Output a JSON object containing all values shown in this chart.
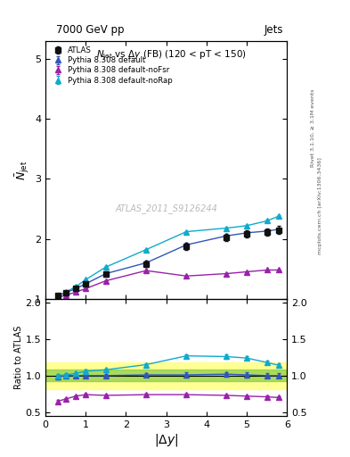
{
  "title_top": "7000 GeV pp",
  "title_right": "Jets",
  "watermark": "ATLAS_2011_S9126244",
  "x": [
    0.3,
    0.5,
    0.75,
    1.0,
    1.5,
    2.5,
    3.5,
    4.5,
    5.0,
    5.5,
    5.8
  ],
  "atlas_y": [
    1.05,
    1.1,
    1.17,
    1.25,
    1.42,
    1.58,
    1.88,
    2.02,
    2.08,
    2.12,
    2.15
  ],
  "atlas_yerr": [
    0.02,
    0.02,
    0.02,
    0.03,
    0.04,
    0.05,
    0.06,
    0.06,
    0.06,
    0.06,
    0.06
  ],
  "default_y": [
    1.05,
    1.1,
    1.17,
    1.25,
    1.42,
    1.6,
    1.9,
    2.05,
    2.1,
    2.13,
    2.16
  ],
  "default_yerr": [
    0.005,
    0.005,
    0.005,
    0.005,
    0.007,
    0.008,
    0.01,
    0.01,
    0.01,
    0.01,
    0.01
  ],
  "noFsr_y": [
    1.02,
    1.06,
    1.11,
    1.17,
    1.3,
    1.47,
    1.38,
    1.42,
    1.45,
    1.48,
    1.48
  ],
  "noFsr_yerr": [
    0.005,
    0.005,
    0.005,
    0.005,
    0.007,
    0.008,
    0.01,
    0.01,
    0.01,
    0.01,
    0.01
  ],
  "noRap_y": [
    1.05,
    1.11,
    1.2,
    1.32,
    1.53,
    1.82,
    2.12,
    2.18,
    2.22,
    2.3,
    2.38
  ],
  "noRap_yerr": [
    0.005,
    0.005,
    0.007,
    0.008,
    0.01,
    0.012,
    0.015,
    0.015,
    0.015,
    0.018,
    0.02
  ],
  "ratio_default": [
    0.98,
    1.0,
    1.0,
    1.0,
    1.0,
    1.01,
    1.01,
    1.02,
    1.01,
    1.0,
    1.0
  ],
  "ratio_default_err": [
    0.025,
    0.025,
    0.022,
    0.022,
    0.025,
    0.03,
    0.032,
    0.032,
    0.032,
    0.03,
    0.03
  ],
  "ratio_noFsr": [
    0.65,
    0.68,
    0.72,
    0.74,
    0.73,
    0.74,
    0.74,
    0.73,
    0.72,
    0.71,
    0.7
  ],
  "ratio_noFsr_err": [
    0.015,
    0.015,
    0.015,
    0.015,
    0.015,
    0.015,
    0.015,
    0.015,
    0.015,
    0.015,
    0.015
  ],
  "ratio_noRap": [
    1.0,
    1.01,
    1.03,
    1.06,
    1.08,
    1.15,
    1.27,
    1.26,
    1.24,
    1.18,
    1.14
  ],
  "ratio_noRap_err": [
    0.02,
    0.02,
    0.02,
    0.02,
    0.02,
    0.02,
    0.025,
    0.025,
    0.025,
    0.025,
    0.025
  ],
  "color_atlas": "#111111",
  "color_default": "#3355bb",
  "color_noFsr": "#9922aa",
  "color_noRap": "#11aacc",
  "main_ylim": [
    1.0,
    5.3
  ],
  "main_yticks": [
    1,
    2,
    3,
    4,
    5
  ],
  "ratio_ylim": [
    0.45,
    2.05
  ],
  "ratio_yticks": [
    0.5,
    1.0,
    1.5,
    2.0
  ],
  "xlim": [
    0.0,
    6.0
  ],
  "band_yellow_lo": 0.82,
  "band_yellow_hi": 1.18,
  "band_green_lo": 0.92,
  "band_green_hi": 1.08
}
